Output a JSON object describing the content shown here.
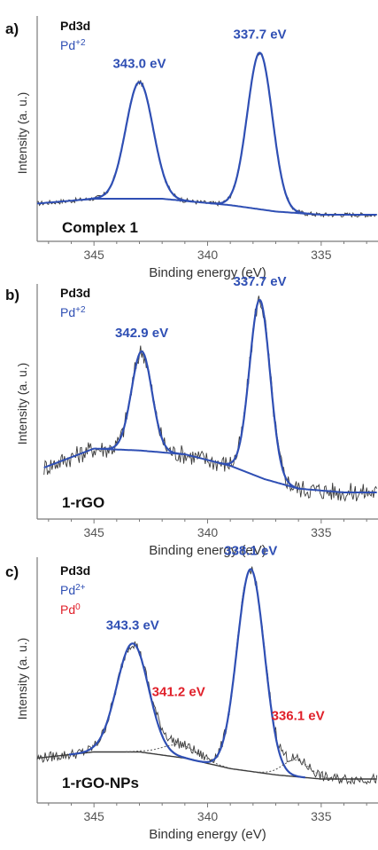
{
  "colors": {
    "blue": "#2f4fb4",
    "red": "#e0202a",
    "raw": "#3a3a3a"
  },
  "chart_data": [
    {
      "type": "line",
      "panel": "a)",
      "legend": [
        {
          "text": "Pd3d",
          "color": "#111111"
        },
        {
          "text": "Pd",
          "sup": "+2",
          "color": "#2f4fb4"
        }
      ],
      "sample": "Complex 1",
      "xlabel": "Binding energy (eV)",
      "ylabel": "Intensity (a. u.)",
      "xlim": [
        347.5,
        332.5
      ],
      "xticks": [
        345,
        340,
        335
      ],
      "grid": false,
      "peaks": [
        {
          "label": "343.0 eV",
          "center": 343.0,
          "height": 0.73,
          "width": 0.6,
          "color": "#2f4fb4"
        },
        {
          "label": "337.7 eV",
          "center": 337.7,
          "height": 0.98,
          "width": 0.55,
          "color": "#2f4fb4"
        }
      ],
      "background": {
        "x": [
          347.5,
          345,
          342,
          339,
          337,
          335,
          332.5
        ],
        "y": [
          0.07,
          0.1,
          0.1,
          0.06,
          0.02,
          0.0,
          0.0
        ]
      },
      "noise": 0.015
    },
    {
      "type": "line",
      "panel": "b)",
      "legend": [
        {
          "text": "Pd3d",
          "color": "#111111"
        },
        {
          "text": "Pd",
          "sup": "+2",
          "color": "#2f4fb4"
        }
      ],
      "sample": "1-rGO",
      "xlabel": "Binding energy (eV)",
      "ylabel": "Intensity (a. u.)",
      "xlim": [
        347.5,
        332.5
      ],
      "xticks": [
        345,
        340,
        335
      ],
      "grid": false,
      "peaks": [
        {
          "label": "342.9 eV",
          "center": 342.9,
          "height": 0.52,
          "width": 0.45,
          "color": "#2f4fb4"
        },
        {
          "label": "337.7 eV",
          "center": 337.7,
          "height": 0.93,
          "width": 0.45,
          "color": "#2f4fb4"
        }
      ],
      "background": {
        "x": [
          347.2,
          345,
          343,
          341,
          339,
          337.5,
          336,
          334,
          332.5
        ],
        "y": [
          0.13,
          0.23,
          0.22,
          0.2,
          0.14,
          0.07,
          0.02,
          0.0,
          0.0
        ]
      },
      "noise": 0.05
    },
    {
      "type": "line",
      "panel": "c)",
      "legend": [
        {
          "text": "Pd3d",
          "color": "#111111"
        },
        {
          "text": "Pd",
          "sup": "2+",
          "color": "#2f4fb4"
        },
        {
          "text": "Pd",
          "sup": "0",
          "color": "#e0202a"
        }
      ],
      "sample": "1-rGO-NPs",
      "xlabel": "Binding energy (eV)",
      "ylabel": "Intensity (a. u.)",
      "xlim": [
        347.5,
        332.5
      ],
      "xticks": [
        345,
        340,
        335
      ],
      "grid": false,
      "peaks": [
        {
          "label": "343.3 eV",
          "center": 343.3,
          "height": 0.52,
          "width": 0.7,
          "color": "#2f4fb4"
        },
        {
          "label": "338.1 eV",
          "center": 338.1,
          "height": 0.97,
          "width": 0.6,
          "color": "#2f4fb4"
        }
      ],
      "minor_peaks": [
        {
          "label": "341.2 eV",
          "center": 341.2,
          "height": 0.06,
          "width": 0.8,
          "color": "#e0202a"
        },
        {
          "label": "336.1 eV",
          "center": 336.1,
          "height": 0.08,
          "width": 0.6,
          "color": "#e0202a"
        }
      ],
      "background": {
        "x": [
          347.5,
          345,
          343,
          341,
          339,
          337,
          335,
          332.5
        ],
        "y": [
          0.1,
          0.13,
          0.13,
          0.1,
          0.05,
          0.02,
          0.0,
          0.0
        ]
      },
      "noise": 0.025
    }
  ]
}
